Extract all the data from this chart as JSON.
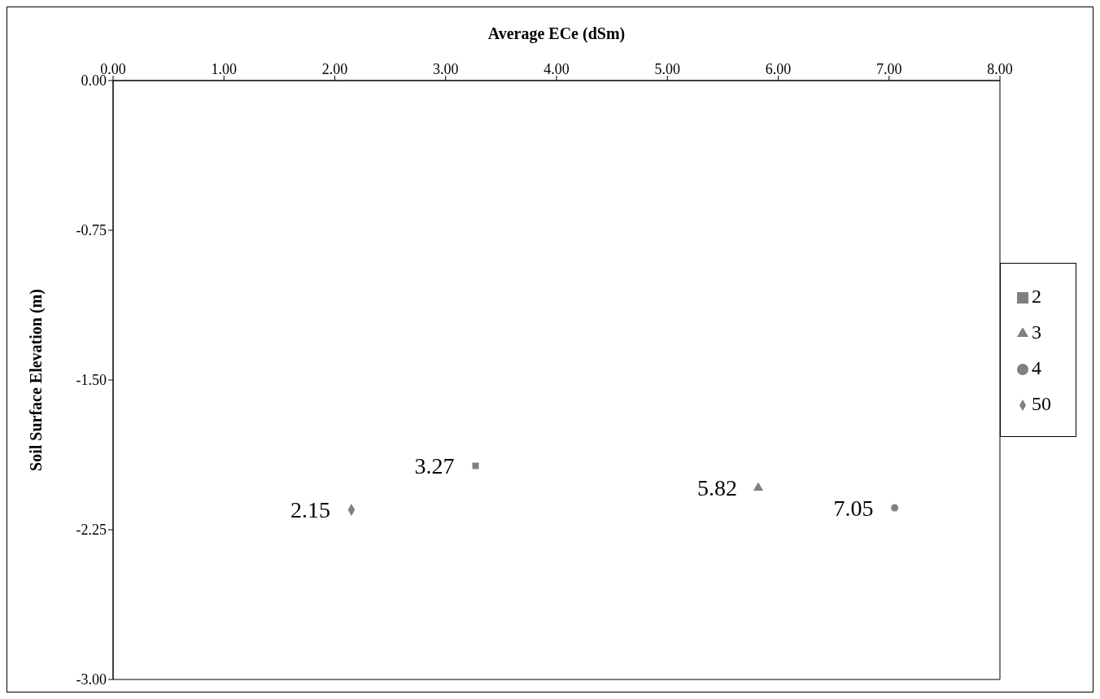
{
  "chart_data": {
    "type": "scatter",
    "xlabel": "Average ECe (dSm)",
    "ylabel": "Soil Surface Elevation (m)",
    "xlim": [
      0,
      8
    ],
    "xticks": [
      {
        "value": 0,
        "label": "0.00"
      },
      {
        "value": 1,
        "label": "1.00"
      },
      {
        "value": 2,
        "label": "2.00"
      },
      {
        "value": 3,
        "label": "3.00"
      },
      {
        "value": 4,
        "label": "4.00"
      },
      {
        "value": 5,
        "label": "5.00"
      },
      {
        "value": 6,
        "label": "6.00"
      },
      {
        "value": 7,
        "label": "7.00"
      },
      {
        "value": 8,
        "label": "8.00"
      }
    ],
    "ylim": [
      -3,
      0
    ],
    "yticks": [
      {
        "value": 0,
        "label": "0.00"
      },
      {
        "value": -0.75,
        "label": "-0.75"
      },
      {
        "value": -1.5,
        "label": "-1.50"
      },
      {
        "value": -2.25,
        "label": "-2.25"
      },
      {
        "value": -3,
        "label": "-3.00"
      }
    ],
    "grid": false,
    "legend": "right",
    "series": [
      {
        "name": "2",
        "color": "#808080",
        "marker": "square",
        "x": [
          3.27
        ],
        "values": [
          -1.93
        ]
      },
      {
        "name": "3",
        "color": "#808080",
        "marker": "triangle",
        "x": [
          5.82
        ],
        "values": [
          -2.04
        ]
      },
      {
        "name": "4",
        "color": "#808080",
        "marker": "circle",
        "x": [
          7.05
        ],
        "values": [
          -2.14
        ]
      },
      {
        "name": "50",
        "color": "#808080",
        "marker": "diamond",
        "x": [
          2.15
        ],
        "values": [
          -2.15
        ]
      }
    ],
    "annotations": [
      {
        "text": "3.27",
        "x": 3.27,
        "y": -1.93
      },
      {
        "text": "5.82",
        "x": 5.82,
        "y": -2.04
      },
      {
        "text": "7.05",
        "x": 7.05,
        "y": -2.14
      },
      {
        "text": "2.15",
        "x": 2.15,
        "y": -2.15
      }
    ]
  }
}
